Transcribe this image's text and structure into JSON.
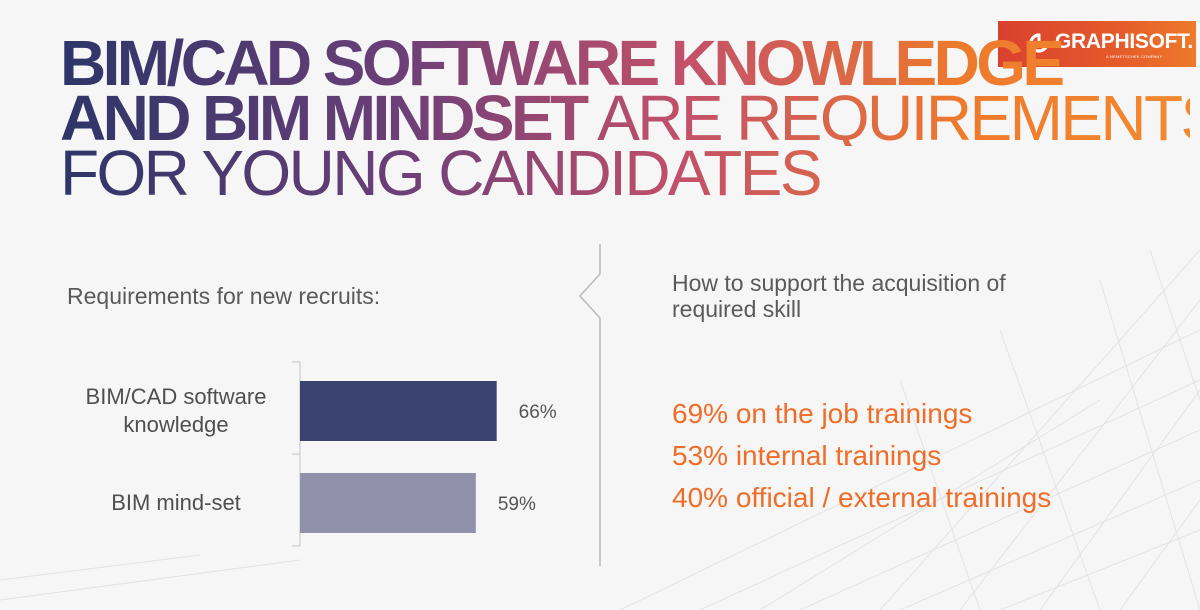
{
  "logo": {
    "name": "GRAPHISOFT.",
    "subtitle": "A NEMETSCHEK COMPANY",
    "icon": "graphisoft-swirl-icon",
    "color": "#e5522b"
  },
  "headline": {
    "line1": "BIM/CAD SOFTWARE KNOWLEDGE",
    "line2_bold": "AND BIM MINDSET",
    "line2_light": " ARE REQUIREMENTS",
    "line3": "FOR YOUNG CANDIDATES"
  },
  "chart_data": {
    "type": "bar",
    "orientation": "horizontal",
    "title": "Requirements for new recruits:",
    "categories": [
      "BIM/CAD software knowledge",
      "BIM mind-set"
    ],
    "category_lines": [
      [
        "BIM/CAD software",
        "knowledge"
      ],
      [
        "BIM mind-set"
      ]
    ],
    "values": [
      66,
      59
    ],
    "value_labels": [
      "66%",
      "59%"
    ],
    "colors": [
      "#3a4270",
      "#9291ab"
    ],
    "xlim": [
      0,
      100
    ],
    "grid": false,
    "legend": "none"
  },
  "support": {
    "title": "How to support the acquisition of required skill",
    "items": [
      "69% on the job trainings",
      "53% internal trainings",
      "40% official / external trainings"
    ],
    "color": "#ef6d27"
  }
}
